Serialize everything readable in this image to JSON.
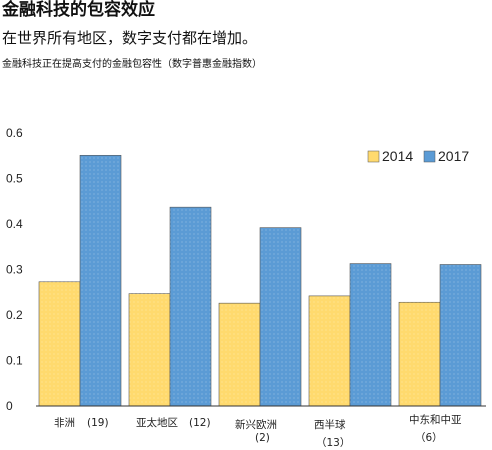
{
  "header": {
    "title": "金融科技的包容效应",
    "subtitle": "在世界所有地区，数字支付都在增加。",
    "caption": "金融科技正在提高支付的金融包容性（数字普惠金融指数）"
  },
  "colors": {
    "series_2014": "#FFDA6E",
    "series_2017": "#5B9BD5",
    "axis": "#333333"
  },
  "chart_data": {
    "type": "bar",
    "categories": [
      [
        "非洲",
        "(19)"
      ],
      [
        "亚太地区",
        "(12)"
      ],
      [
        "新兴欧洲",
        "(2)"
      ],
      [
        "西半球",
        "（13）"
      ],
      [
        "中东和中亚",
        "（6）"
      ]
    ],
    "series": [
      {
        "name": "2014",
        "values": [
          0.273,
          0.247,
          0.226,
          0.242,
          0.228
        ]
      },
      {
        "name": "2017",
        "values": [
          0.551,
          0.437,
          0.392,
          0.313,
          0.311
        ]
      }
    ],
    "ylim": [
      0,
      0.6
    ],
    "yticks": [
      "0",
      "0.1",
      "0.2",
      "0.3",
      "0.4",
      "0.5",
      "0.6"
    ],
    "legend_position": "top-right",
    "grid": false
  }
}
